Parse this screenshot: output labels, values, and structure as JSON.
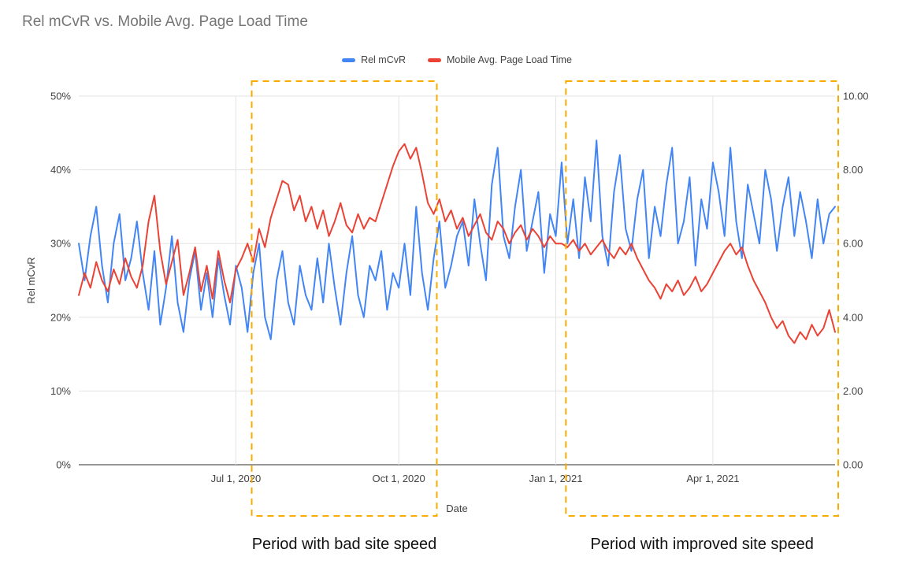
{
  "chart_data": {
    "type": "line",
    "title": "Rel mCvR vs. Mobile Avg. Page Load Time",
    "xlabel": "Date",
    "ylabel": "Rel mCvR",
    "legend_position": "top",
    "grid": true,
    "left_axis": {
      "min": 0,
      "max": 50,
      "ticks": [
        "0%",
        "10%",
        "20%",
        "30%",
        "40%",
        "50%"
      ]
    },
    "right_axis": {
      "min": 0,
      "max": 10,
      "ticks": [
        "0.00",
        "2.00",
        "4.00",
        "6.00",
        "8.00",
        "10.00"
      ]
    },
    "x_ticks": [
      {
        "label": "Jul 1, 2020",
        "index": 27
      },
      {
        "label": "Oct 1, 2020",
        "index": 55
      },
      {
        "label": "Jan 1, 2021",
        "index": 82
      },
      {
        "label": "Apr 1, 2021",
        "index": 109
      }
    ],
    "legend": [
      {
        "label": "Rel mCvR",
        "color": "#4285f4"
      },
      {
        "label": "Mobile Avg. Page Load Time",
        "color": "#ea4335"
      }
    ],
    "series": [
      {
        "name": "Rel mCvR",
        "axis": "left",
        "color": "#4285f4",
        "values": [
          30,
          25,
          31,
          35,
          27,
          22,
          30,
          34,
          25,
          28,
          33,
          26,
          21,
          29,
          19,
          24,
          31,
          22,
          18,
          25,
          29,
          21,
          26,
          20,
          28,
          23,
          19,
          27,
          24,
          18,
          26,
          30,
          20,
          17,
          25,
          29,
          22,
          19,
          27,
          23,
          21,
          28,
          22,
          30,
          24,
          19,
          26,
          31,
          23,
          20,
          27,
          25,
          29,
          21,
          26,
          24,
          30,
          23,
          35,
          26,
          21,
          28,
          33,
          24,
          27,
          31,
          33,
          27,
          36,
          30,
          25,
          38,
          43,
          31,
          28,
          35,
          40,
          29,
          33,
          37,
          26,
          34,
          31,
          41,
          30,
          36,
          28,
          39,
          33,
          44,
          31,
          27,
          37,
          42,
          32,
          29,
          36,
          40,
          28,
          35,
          31,
          38,
          43,
          30,
          33,
          39,
          27,
          36,
          32,
          41,
          37,
          31,
          43,
          33,
          28,
          38,
          34,
          30,
          40,
          36,
          29,
          35,
          39,
          31,
          37,
          33,
          28,
          36,
          30,
          34,
          35
        ]
      },
      {
        "name": "Mobile Avg. Page Load Time",
        "axis": "right",
        "color": "#ea4335",
        "values": [
          4.6,
          5.2,
          4.8,
          5.5,
          5.0,
          4.7,
          5.3,
          4.9,
          5.6,
          5.1,
          4.8,
          5.4,
          6.6,
          7.3,
          5.8,
          4.9,
          5.5,
          6.1,
          4.6,
          5.2,
          5.9,
          4.7,
          5.4,
          4.5,
          5.8,
          5.0,
          4.4,
          5.3,
          5.6,
          6.0,
          5.5,
          6.4,
          5.9,
          6.7,
          7.2,
          7.7,
          7.6,
          6.9,
          7.3,
          6.6,
          7.0,
          6.4,
          6.9,
          6.2,
          6.6,
          7.1,
          6.5,
          6.3,
          6.8,
          6.4,
          6.7,
          6.6,
          7.1,
          7.6,
          8.1,
          8.5,
          8.7,
          8.3,
          8.6,
          7.9,
          7.1,
          6.8,
          7.2,
          6.6,
          6.9,
          6.4,
          6.7,
          6.2,
          6.5,
          6.8,
          6.3,
          6.1,
          6.6,
          6.4,
          6.0,
          6.3,
          6.5,
          6.1,
          6.4,
          6.2,
          5.9,
          6.2,
          6.0,
          6.0,
          5.9,
          6.1,
          5.8,
          6.0,
          5.7,
          5.9,
          6.1,
          5.8,
          5.6,
          5.9,
          5.7,
          6.0,
          5.6,
          5.3,
          5.0,
          4.8,
          4.5,
          4.9,
          4.7,
          5.0,
          4.6,
          4.8,
          5.1,
          4.7,
          4.9,
          5.2,
          5.5,
          5.8,
          6.0,
          5.7,
          5.9,
          5.4,
          5.0,
          4.7,
          4.4,
          4.0,
          3.7,
          3.9,
          3.5,
          3.3,
          3.6,
          3.4,
          3.8,
          3.5,
          3.7,
          4.2,
          3.6
        ]
      }
    ],
    "annotations": [
      {
        "label": "Period with bad site speed",
        "start_index": 30,
        "end_index": 61,
        "color": "#f9ab00"
      },
      {
        "label": "Period with improved site speed",
        "start_index": 84,
        "end_index": 130,
        "color": "#f9ab00"
      }
    ]
  }
}
